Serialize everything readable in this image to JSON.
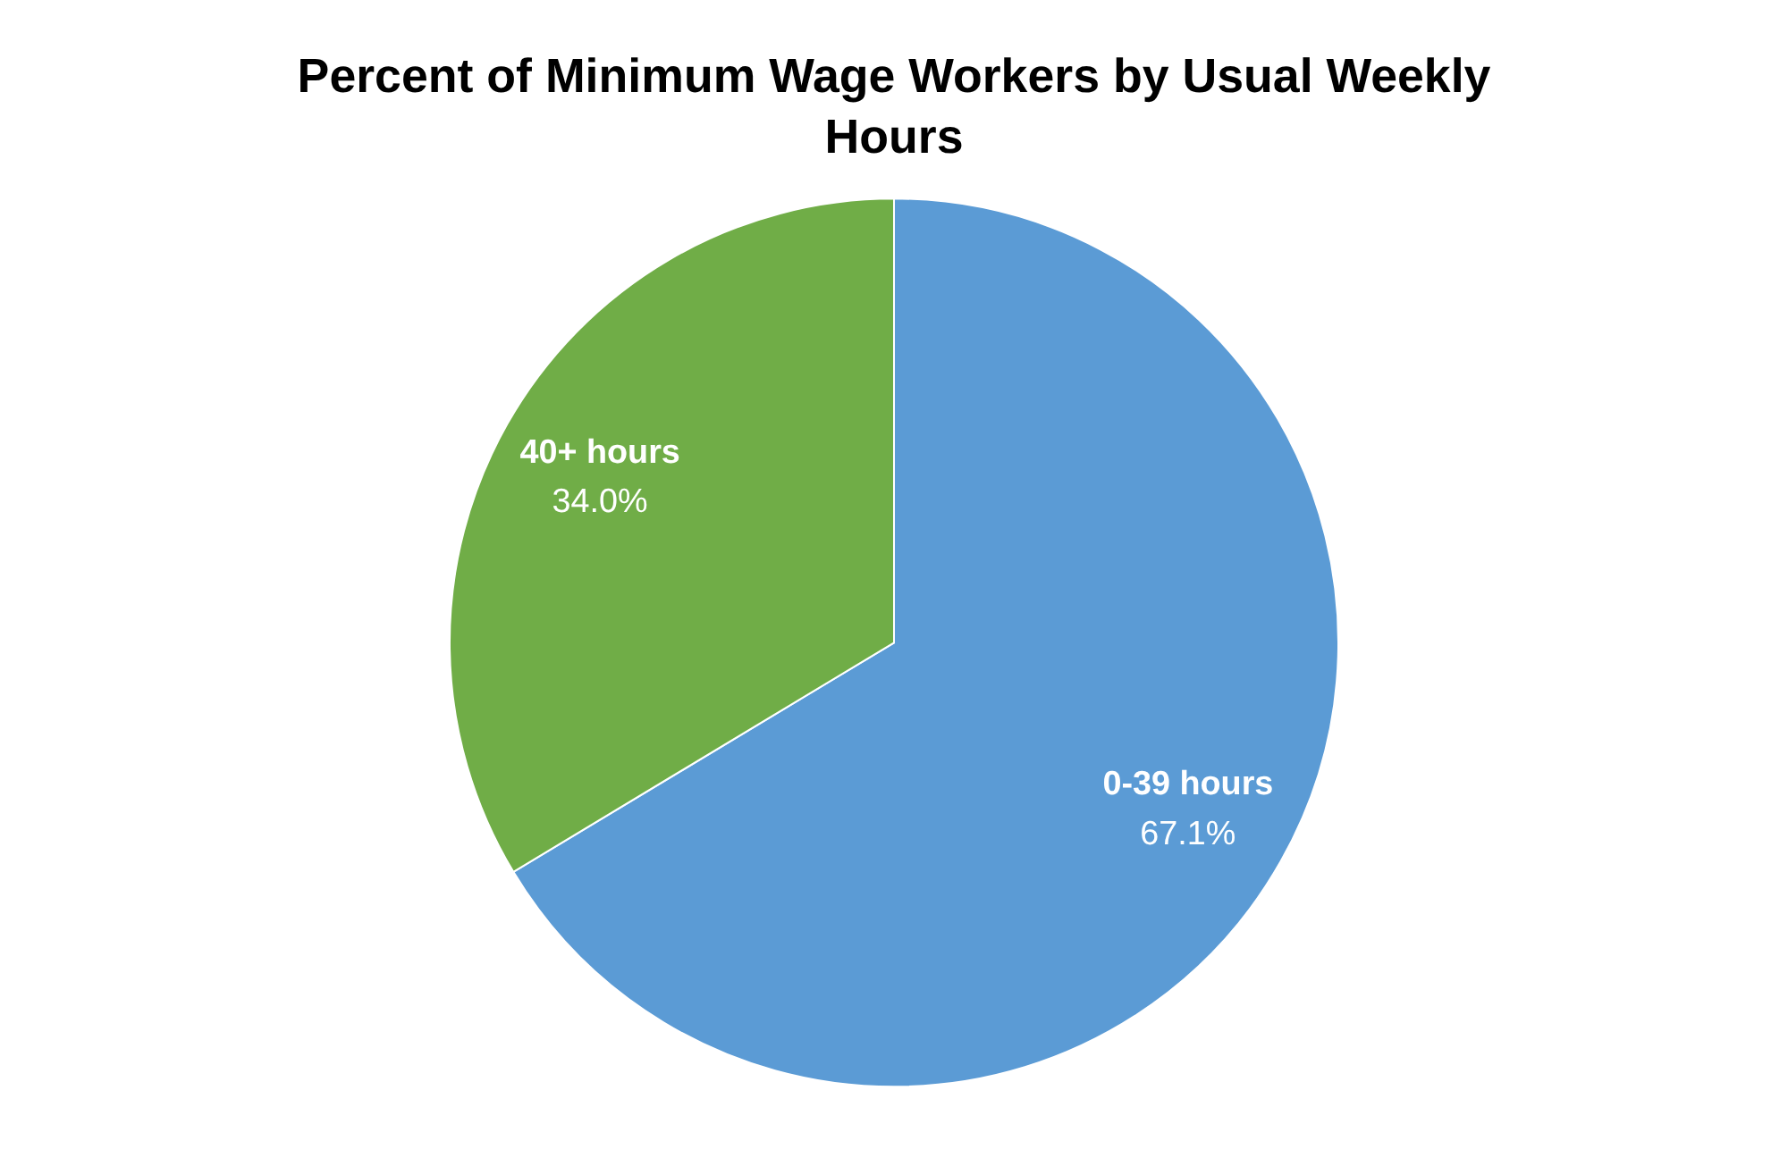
{
  "chart_data": {
    "type": "pie",
    "title": "Percent of Minimum Wage Workers by Usual Weekly Hours",
    "categories": [
      "0-39 hours",
      "40+ hours"
    ],
    "values": [
      67.1,
      34.0
    ],
    "value_labels": [
      "67.1%",
      "34.0%"
    ],
    "colors": [
      "#5b9bd5",
      "#70ad47"
    ],
    "legend": false
  }
}
